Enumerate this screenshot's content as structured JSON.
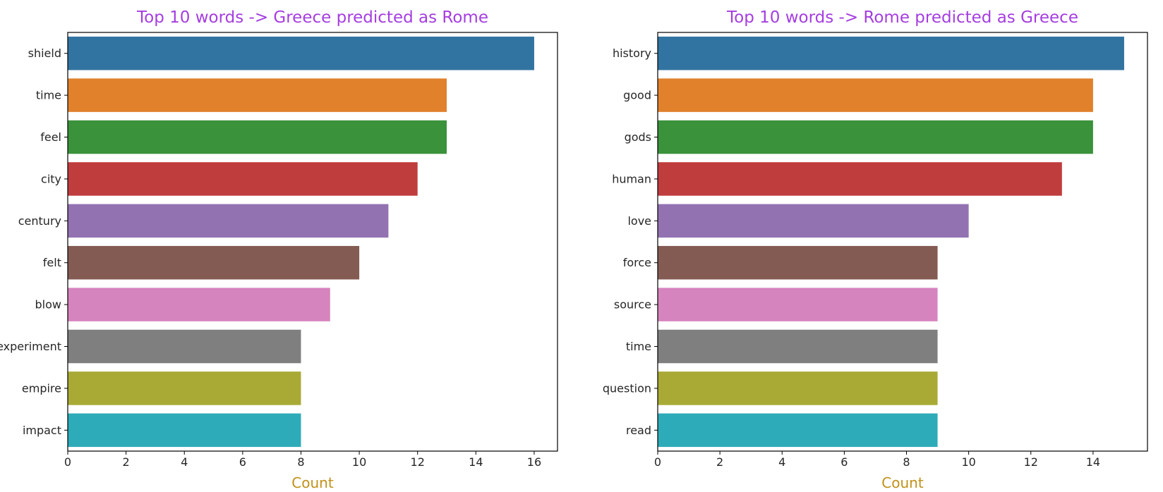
{
  "colors": {
    "title": "#a53ee0",
    "axis_label": "#c19018",
    "bars": [
      "#3274a1",
      "#e1812c",
      "#3a923a",
      "#c03d3e",
      "#9372b2",
      "#845b53",
      "#d684bd",
      "#7f7f7f",
      "#a9aa35",
      "#2eabb8"
    ]
  },
  "chart_data": [
    {
      "type": "bar",
      "orientation": "horizontal",
      "title": "Top 10 words -> Greece predicted as Rome",
      "xlabel": "Count",
      "ylabel": "",
      "categories": [
        "shield",
        "time",
        "feel",
        "city",
        "century",
        "felt",
        "blow",
        "experiment",
        "empire",
        "impact"
      ],
      "values": [
        16,
        13,
        13,
        12,
        11,
        10,
        9,
        8,
        8,
        8
      ],
      "xlim": [
        0,
        16.8
      ],
      "xticks": [
        0,
        2,
        4,
        6,
        8,
        10,
        12,
        14,
        16
      ]
    },
    {
      "type": "bar",
      "orientation": "horizontal",
      "title": "Top 10 words -> Rome predicted as Greece",
      "xlabel": "Count",
      "ylabel": "",
      "categories": [
        "history",
        "good",
        "gods",
        "human",
        "love",
        "force",
        "source",
        "time",
        "question",
        "read"
      ],
      "values": [
        15,
        14,
        14,
        13,
        10,
        9,
        9,
        9,
        9,
        9
      ],
      "xlim": [
        0,
        15.75
      ],
      "xticks": [
        0,
        2,
        4,
        6,
        8,
        10,
        12,
        14
      ]
    }
  ]
}
